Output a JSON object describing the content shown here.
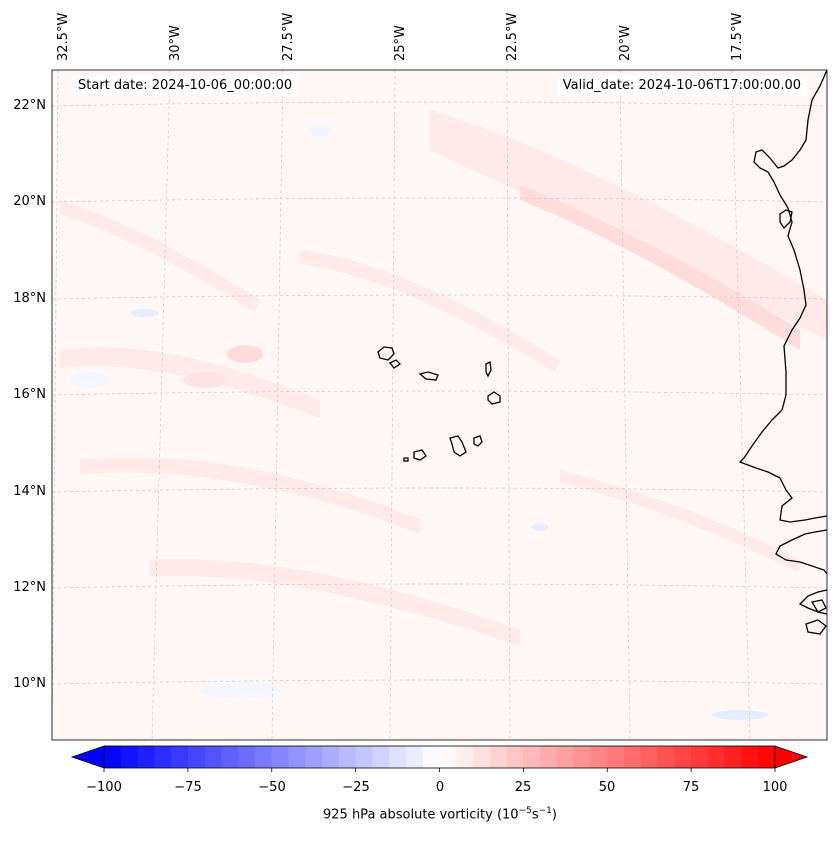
{
  "map": {
    "longitude_labels": [
      "32.5°W",
      "30°W",
      "27.5°W",
      "25°W",
      "22.5°W",
      "20°W",
      "17.5°W"
    ],
    "latitude_labels": [
      "22°N",
      "20°N",
      "18°N",
      "16°N",
      "14°N",
      "12°N",
      "10°N"
    ],
    "start_date": "Start date: 2024-10-06_00:00:00",
    "valid_date": "Valid_date: 2024-10-06T17:00:00.00",
    "field_colors": {
      "neutral": "#fff6f6",
      "light_positive": "#ffe9e9",
      "positive": "#ffdcdc",
      "light_negative": "#f3f6ff",
      "negative": "#e6edff"
    }
  },
  "colorbar": {
    "ticks": [
      "−100",
      "−75",
      "−50",
      "−25",
      "0",
      "25",
      "50",
      "75",
      "100"
    ],
    "tick_values": [
      -100,
      -75,
      -50,
      -25,
      0,
      25,
      50,
      75,
      100
    ],
    "range": [
      -100,
      100
    ],
    "label_prefix": "925 hPa absolute vorticity (10",
    "label_exp1": "−5",
    "label_mid": "s",
    "label_exp2": "−1",
    "label_suffix": ")",
    "negative_color": "#0000ff",
    "neutral_color": "#ffffff",
    "positive_color": "#ff0000"
  }
}
